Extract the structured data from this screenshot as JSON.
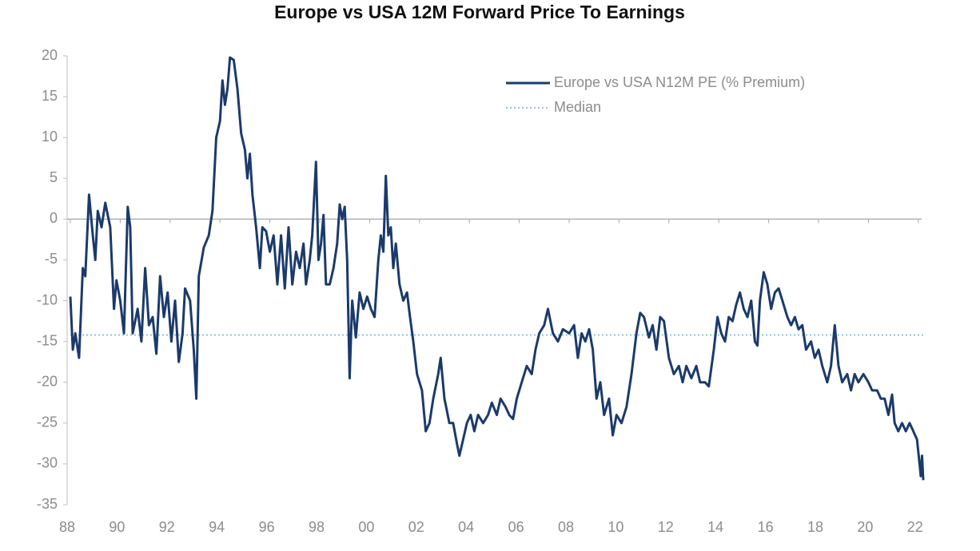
{
  "chart_data": {
    "type": "line",
    "title": "Europe vs USA 12M Forward Price To Earnings",
    "xlim": [
      1988,
      2022.2
    ],
    "ylim": [
      -35,
      20
    ],
    "yticks": [
      -35,
      -30,
      -25,
      -20,
      -15,
      -10,
      -5,
      0,
      5,
      10,
      15,
      20
    ],
    "xticks": [
      {
        "value": 1988,
        "label": "88"
      },
      {
        "value": 1990,
        "label": "90"
      },
      {
        "value": 1992,
        "label": "92"
      },
      {
        "value": 1994,
        "label": "94"
      },
      {
        "value": 1996,
        "label": "96"
      },
      {
        "value": 1998,
        "label": "98"
      },
      {
        "value": 2000,
        "label": "00"
      },
      {
        "value": 2002,
        "label": "02"
      },
      {
        "value": 2004,
        "label": "04"
      },
      {
        "value": 2006,
        "label": "06"
      },
      {
        "value": 2008,
        "label": "08"
      },
      {
        "value": 2010,
        "label": "10"
      },
      {
        "value": 2012,
        "label": "12"
      },
      {
        "value": 2014,
        "label": "14"
      },
      {
        "value": 2016,
        "label": "16"
      },
      {
        "value": 2018,
        "label": "18"
      },
      {
        "value": 2020,
        "label": "20"
      },
      {
        "value": 2022,
        "label": "22"
      }
    ],
    "grid": false,
    "legend": "top-right",
    "series": [
      {
        "name": "Europe vs USA N12M PE (% Premium)",
        "color": "#1b3a6b",
        "style": "solid",
        "x": [
          1988.0,
          1988.1,
          1988.2,
          1988.35,
          1988.5,
          1988.6,
          1988.75,
          1988.9,
          1989.0,
          1989.1,
          1989.25,
          1989.4,
          1989.6,
          1989.75,
          1989.85,
          1990.0,
          1990.15,
          1990.3,
          1990.4,
          1990.5,
          1990.7,
          1990.85,
          1991.0,
          1991.15,
          1991.3,
          1991.45,
          1991.6,
          1991.75,
          1991.9,
          1992.05,
          1992.2,
          1992.35,
          1992.5,
          1992.6,
          1992.8,
          1992.95,
          1993.05,
          1993.15,
          1993.35,
          1993.55,
          1993.7,
          1993.85,
          1994.0,
          1994.1,
          1994.2,
          1994.3,
          1994.4,
          1994.55,
          1994.7,
          1994.85,
          1995.0,
          1995.1,
          1995.2,
          1995.3,
          1995.45,
          1995.6,
          1995.7,
          1995.85,
          1996.0,
          1996.15,
          1996.3,
          1996.45,
          1996.6,
          1996.75,
          1996.9,
          1997.05,
          1997.2,
          1997.35,
          1997.45,
          1997.6,
          1997.7,
          1997.85,
          1997.95,
          1998.05,
          1998.15,
          1998.25,
          1998.4,
          1998.55,
          1998.7,
          1998.8,
          1998.9,
          1999.0,
          1999.1,
          1999.2,
          1999.3,
          1999.45,
          1999.6,
          1999.75,
          1999.9,
          2000.05,
          2000.2,
          2000.35,
          2000.45,
          2000.55,
          2000.65,
          2000.75,
          2000.85,
          2000.95,
          2001.05,
          2001.2,
          2001.35,
          2001.5,
          2001.6,
          2001.75,
          2001.9,
          2002.1,
          2002.25,
          2002.4,
          2002.55,
          2002.75,
          2002.85,
          2003.0,
          2003.2,
          2003.35,
          2003.5,
          2003.6,
          2003.75,
          2003.9,
          2004.05,
          2004.2,
          2004.35,
          2004.55,
          2004.75,
          2004.9,
          2005.1,
          2005.25,
          2005.45,
          2005.6,
          2005.75,
          2005.9,
          2006.1,
          2006.3,
          2006.5,
          2006.65,
          2006.8,
          2007.0,
          2007.15,
          2007.35,
          2007.55,
          2007.75,
          2008.0,
          2008.2,
          2008.35,
          2008.5,
          2008.65,
          2008.8,
          2008.95,
          2009.1,
          2009.25,
          2009.4,
          2009.6,
          2009.75,
          2009.9,
          2010.1,
          2010.3,
          2010.5,
          2010.7,
          2010.85,
          2011.0,
          2011.2,
          2011.35,
          2011.5,
          2011.65,
          2011.8,
          2012.0,
          2012.2,
          2012.4,
          2012.55,
          2012.7,
          2012.9,
          2013.1,
          2013.25,
          2013.45,
          2013.6,
          2013.8,
          2013.95,
          2014.1,
          2014.25,
          2014.4,
          2014.55,
          2014.7,
          2014.85,
          2015.0,
          2015.15,
          2015.3,
          2015.45,
          2015.55,
          2015.65,
          2015.8,
          2015.95,
          2016.1,
          2016.25,
          2016.4,
          2016.55,
          2016.75,
          2016.9,
          2017.05,
          2017.2,
          2017.35,
          2017.5,
          2017.7,
          2017.85,
          2018.0,
          2018.15,
          2018.35,
          2018.5,
          2018.65,
          2018.8,
          2018.95,
          2019.15,
          2019.3,
          2019.45,
          2019.6,
          2019.8,
          2020.0,
          2020.15,
          2020.35,
          2020.5,
          2020.65,
          2020.8,
          2020.95,
          2021.05,
          2021.2,
          2021.35,
          2021.5,
          2021.65,
          2021.8,
          2021.95,
          2022.05,
          2022.1,
          2022.15,
          2022.2
        ],
        "values": [
          -9.5,
          -16,
          -14,
          -17,
          -6,
          -7,
          3,
          -2,
          -5,
          1,
          -1,
          2,
          -1,
          -11,
          -7.5,
          -10,
          -14,
          1.5,
          -1,
          -14,
          -11,
          -15,
          -6,
          -13,
          -12,
          -16.5,
          -7,
          -12,
          -9,
          -15,
          -10,
          -17.5,
          -14,
          -8.5,
          -10,
          -16,
          -22,
          -7,
          -3.5,
          -2,
          1,
          10,
          12,
          17,
          14,
          16,
          19.8,
          19.5,
          16,
          10.5,
          8.5,
          5,
          8,
          3,
          -1,
          -6,
          -1,
          -1.5,
          -4,
          -2,
          -8,
          -2,
          -8.5,
          -1,
          -8,
          -4,
          -6,
          -3,
          -8,
          -5,
          -2,
          7,
          -5,
          -3,
          0.5,
          -8,
          -8,
          -6,
          -3,
          1.8,
          0,
          1.5,
          -5,
          -19.5,
          -10,
          -14.5,
          -9,
          -11,
          -9.5,
          -11,
          -12,
          -5,
          -2,
          -4,
          5.3,
          -2,
          -1,
          -6,
          -3,
          -8,
          -10,
          -9,
          -11.5,
          -15,
          -19,
          -21,
          -26,
          -25,
          -22,
          -19,
          -17,
          -22,
          -25,
          -25,
          -27.5,
          -29,
          -27,
          -25,
          -24,
          -26,
          -24,
          -25,
          -24,
          -22.5,
          -24,
          -22,
          -23,
          -24,
          -24.5,
          -22,
          -20,
          -18,
          -19,
          -16,
          -14,
          -13,
          -11,
          -14,
          -15,
          -13.5,
          -14,
          -13,
          -17,
          -14,
          -15,
          -13.5,
          -16,
          -22,
          -20,
          -24,
          -22,
          -26.5,
          -24,
          -25,
          -23,
          -19,
          -14,
          -11.5,
          -12,
          -14.5,
          -13,
          -16,
          -12,
          -12.5,
          -17,
          -19,
          -18,
          -20,
          -18,
          -19.5,
          -18,
          -20,
          -20,
          -20.5,
          -16,
          -12,
          -14,
          -15,
          -12,
          -12.5,
          -10.5,
          -9,
          -11,
          -12,
          -10,
          -15,
          -15.5,
          -10,
          -6.5,
          -8,
          -11,
          -9,
          -8.5,
          -10,
          -12,
          -13,
          -12,
          -13.5,
          -13,
          -16,
          -15,
          -17,
          -16,
          -18,
          -20,
          -18,
          -13,
          -18,
          -20,
          -19,
          -21,
          -19,
          -20,
          -19,
          -20,
          -21,
          -21,
          -22,
          -22,
          -24,
          -21.5,
          -25,
          -26,
          -25,
          -26,
          -25,
          -26,
          -27,
          -30,
          -31.5,
          -29,
          -32
        ]
      },
      {
        "name": "Median",
        "color": "#8fc3dc",
        "style": "dotted",
        "x": [
          1988,
          2022.2
        ],
        "values": [
          -14.2,
          -14.2
        ]
      }
    ]
  }
}
